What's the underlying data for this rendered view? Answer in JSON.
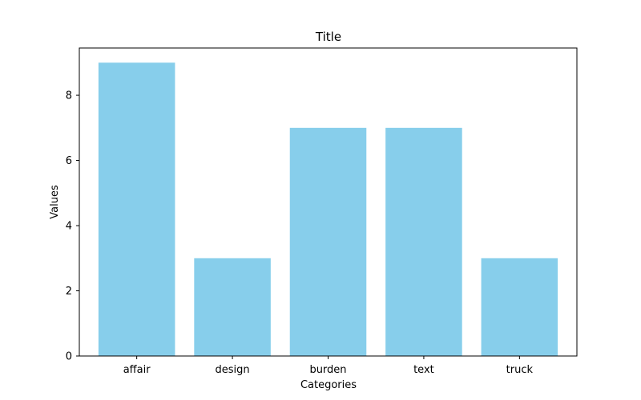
{
  "chart_data": {
    "type": "bar",
    "title": "Title",
    "xlabel": "Categories",
    "ylabel": "Values",
    "categories": [
      "affair",
      "design",
      "burden",
      "text",
      "truck"
    ],
    "values": [
      9,
      3,
      7,
      7,
      3
    ],
    "ylim": [
      0,
      9.45
    ],
    "yticks": [
      0,
      2,
      4,
      6,
      8
    ],
    "grid": false,
    "bar_color": "#87ceeb",
    "axis_color": "#000000"
  }
}
